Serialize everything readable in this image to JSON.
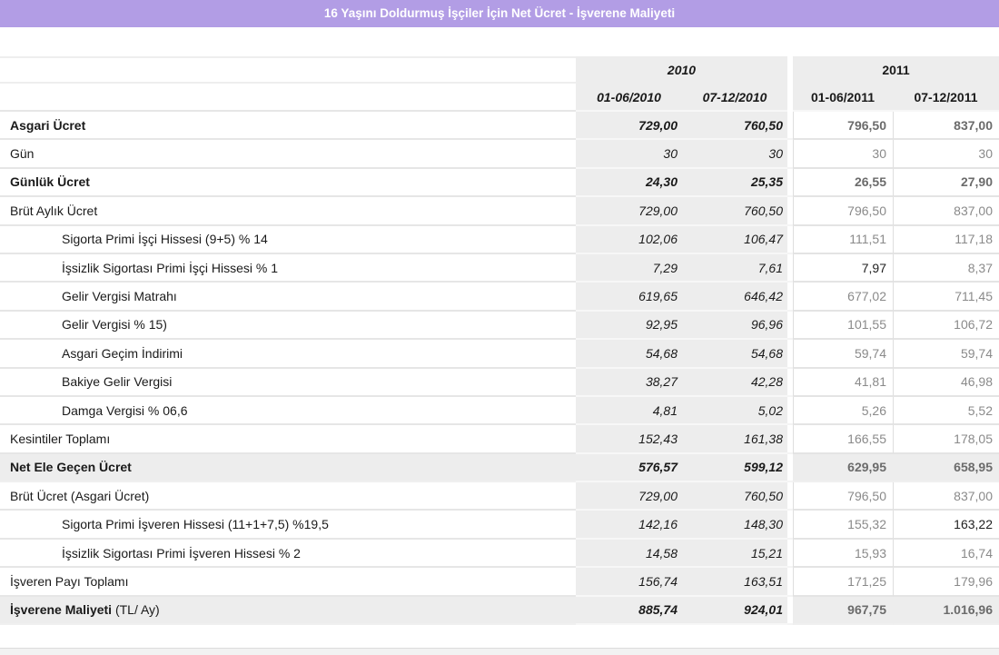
{
  "title": "16 Yaşını Doldurmuş İşçiler İçin Net Ücret - İşverene Maliyeti",
  "colors": {
    "title_bar_bg": "#b29de5",
    "title_text": "#ffffff",
    "group_header_bg": "#ededed",
    "band_row_bg": "#ededed",
    "value_2011_text": "#8a8a8a",
    "value_2011_bold_text": "#6b6b6b",
    "highlight_value_text": "#1f1f1f"
  },
  "table": {
    "year_groups": [
      {
        "label": "2010"
      },
      {
        "label": "2011"
      }
    ],
    "columns": [
      "01-06/2010",
      "07-12/2010",
      "01-06/2011",
      "07-12/2011"
    ],
    "rows": [
      {
        "label": "Asgari Ücret",
        "bold": true,
        "indent": false,
        "band": false,
        "values": [
          "729,00",
          "760,50",
          "796,50",
          "837,00"
        ],
        "dark_value_cols": []
      },
      {
        "label": "Gün",
        "bold": false,
        "indent": false,
        "band": false,
        "values": [
          "30",
          "30",
          "30",
          "30"
        ],
        "dark_value_cols": []
      },
      {
        "label": "Günlük Ücret",
        "bold": true,
        "indent": false,
        "band": false,
        "values": [
          "24,30",
          "25,35",
          "26,55",
          "27,90"
        ],
        "dark_value_cols": []
      },
      {
        "label": "Brüt Aylık Ücret",
        "bold": false,
        "indent": false,
        "band": false,
        "values": [
          "729,00",
          "760,50",
          "796,50",
          "837,00"
        ],
        "dark_value_cols": []
      },
      {
        "label": "Sigorta Primi İşçi Hissesi (9+5) % 14",
        "bold": false,
        "indent": true,
        "band": false,
        "values": [
          "102,06",
          "106,47",
          "111,51",
          "117,18"
        ],
        "dark_value_cols": []
      },
      {
        "label": "İşsizlik Sigortası Primi İşçi Hissesi % 1",
        "bold": false,
        "indent": true,
        "band": false,
        "values": [
          "7,29",
          "7,61",
          "7,97",
          "8,37"
        ],
        "dark_value_cols": [
          2
        ]
      },
      {
        "label": "Gelir Vergisi Matrahı",
        "bold": false,
        "indent": true,
        "band": false,
        "values": [
          "619,65",
          "646,42",
          "677,02",
          "711,45"
        ],
        "dark_value_cols": []
      },
      {
        "label": "Gelir Vergisi % 15)",
        "bold": false,
        "indent": true,
        "band": false,
        "values": [
          "92,95",
          "96,96",
          "101,55",
          "106,72"
        ],
        "dark_value_cols": []
      },
      {
        "label": "Asgari Geçim İndirimi",
        "bold": false,
        "indent": true,
        "band": false,
        "values": [
          "54,68",
          "54,68",
          "59,74",
          "59,74"
        ],
        "dark_value_cols": []
      },
      {
        "label": "Bakiye Gelir Vergisi",
        "bold": false,
        "indent": true,
        "band": false,
        "values": [
          "38,27",
          "42,28",
          "41,81",
          "46,98"
        ],
        "dark_value_cols": []
      },
      {
        "label": "Damga Vergisi % 06,6",
        "bold": false,
        "indent": true,
        "band": false,
        "values": [
          "4,81",
          "5,02",
          "5,26",
          "5,52"
        ],
        "dark_value_cols": []
      },
      {
        "label": "Kesintiler Toplamı",
        "bold": false,
        "indent": false,
        "band": false,
        "values": [
          "152,43",
          "161,38",
          "166,55",
          "178,05"
        ],
        "dark_value_cols": []
      },
      {
        "label": "Net Ele Geçen Ücret",
        "bold": true,
        "indent": false,
        "band": true,
        "values": [
          "576,57",
          "599,12",
          "629,95",
          "658,95"
        ],
        "dark_value_cols": []
      },
      {
        "label": "Brüt Ücret (Asgari Ücret)",
        "bold": false,
        "indent": false,
        "band": false,
        "values": [
          "729,00",
          "760,50",
          "796,50",
          "837,00"
        ],
        "dark_value_cols": []
      },
      {
        "label": "Sigorta Primi İşveren Hissesi (11+1+7,5) %19,5",
        "bold": false,
        "indent": true,
        "band": false,
        "values": [
          "142,16",
          "148,30",
          "155,32",
          "163,22"
        ],
        "dark_value_cols": [
          3
        ]
      },
      {
        "label": "İşsizlik Sigortası Primi İşveren Hissesi % 2",
        "bold": false,
        "indent": true,
        "band": false,
        "values": [
          "14,58",
          "15,21",
          "15,93",
          "16,74"
        ],
        "dark_value_cols": []
      },
      {
        "label": "İşveren Payı Toplamı",
        "bold": false,
        "indent": false,
        "band": false,
        "values": [
          "156,74",
          "163,51",
          "171,25",
          "179,96"
        ],
        "dark_value_cols": []
      },
      {
        "label": "İşverene Maliyeti",
        "suffix": " (TL/ Ay)",
        "bold": true,
        "indent": false,
        "band": true,
        "values": [
          "885,74",
          "924,01",
          "967,75",
          "1.016,96"
        ],
        "dark_value_cols": []
      }
    ]
  }
}
